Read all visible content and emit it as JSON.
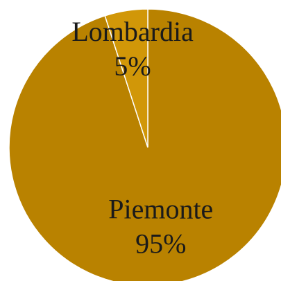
{
  "chart_data": {
    "type": "pie",
    "categories": [
      "Piemonte",
      "Lombardia"
    ],
    "values": [
      95,
      5
    ],
    "value_labels": [
      "95%",
      "5%"
    ],
    "colors": [
      "#b98200",
      "#d19708"
    ]
  }
}
